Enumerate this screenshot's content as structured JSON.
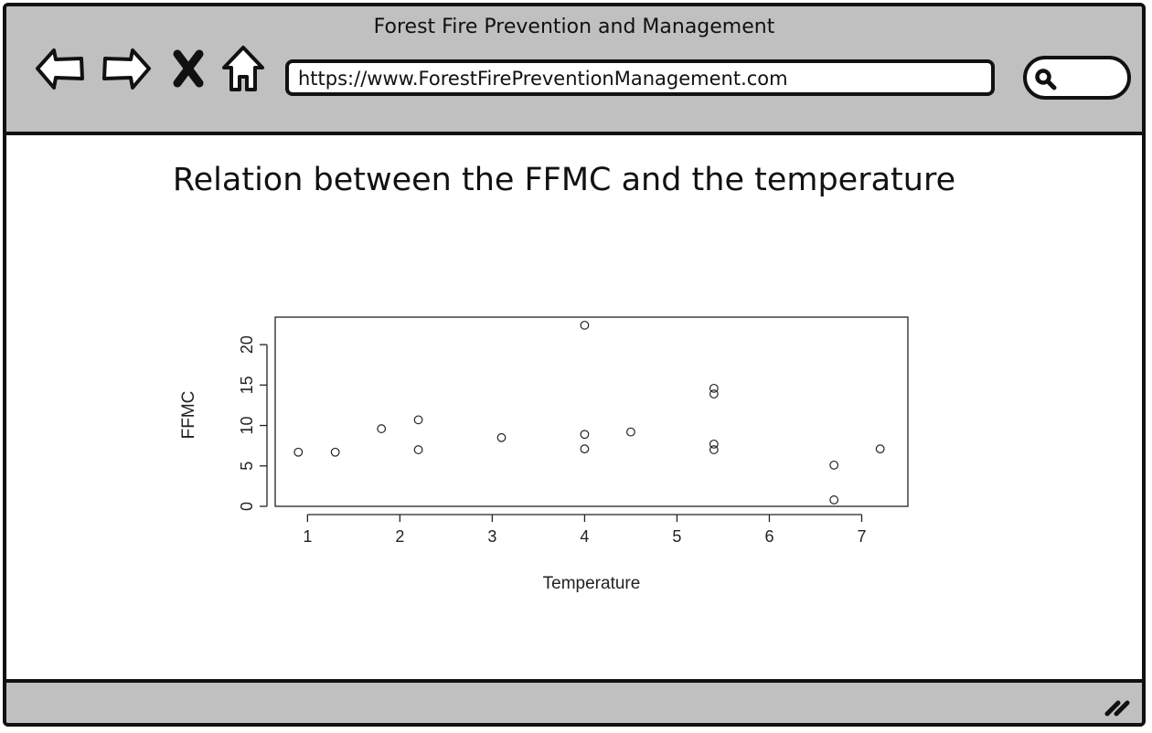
{
  "window": {
    "title": "Forest Fire Prevention and Management"
  },
  "toolbar": {
    "back_icon": "back-arrow-icon",
    "forward_icon": "forward-arrow-icon",
    "close_icon": "close-x-icon",
    "home_icon": "home-icon",
    "url": "https://www.ForestFirePreventionManagement.com",
    "search_icon": "search-icon",
    "search_value": ""
  },
  "page": {
    "title": "Relation between the FFMC and the temperature"
  },
  "footer": {
    "resize_icon": "resize-grip-icon"
  },
  "chart_data": {
    "type": "scatter",
    "title": "",
    "xlabel": "Temperature",
    "ylabel": "FFMC",
    "xlim": [
      0.65,
      7.5
    ],
    "ylim": [
      0,
      23.4
    ],
    "xticks": [
      1,
      2,
      3,
      4,
      5,
      6,
      7
    ],
    "yticks": [
      0,
      5,
      10,
      15,
      20
    ],
    "grid": false,
    "points": [
      {
        "x": 0.9,
        "y": 6.7
      },
      {
        "x": 1.3,
        "y": 6.7
      },
      {
        "x": 1.8,
        "y": 9.6
      },
      {
        "x": 2.2,
        "y": 10.7
      },
      {
        "x": 2.2,
        "y": 7.0
      },
      {
        "x": 3.1,
        "y": 8.5
      },
      {
        "x": 4.0,
        "y": 22.4
      },
      {
        "x": 4.0,
        "y": 8.9
      },
      {
        "x": 4.0,
        "y": 7.1
      },
      {
        "x": 4.5,
        "y": 9.2
      },
      {
        "x": 5.4,
        "y": 14.6
      },
      {
        "x": 5.4,
        "y": 13.9
      },
      {
        "x": 5.4,
        "y": 7.7
      },
      {
        "x": 5.4,
        "y": 7.0
      },
      {
        "x": 6.7,
        "y": 5.1
      },
      {
        "x": 6.7,
        "y": 0.8
      },
      {
        "x": 7.2,
        "y": 7.1
      }
    ]
  }
}
